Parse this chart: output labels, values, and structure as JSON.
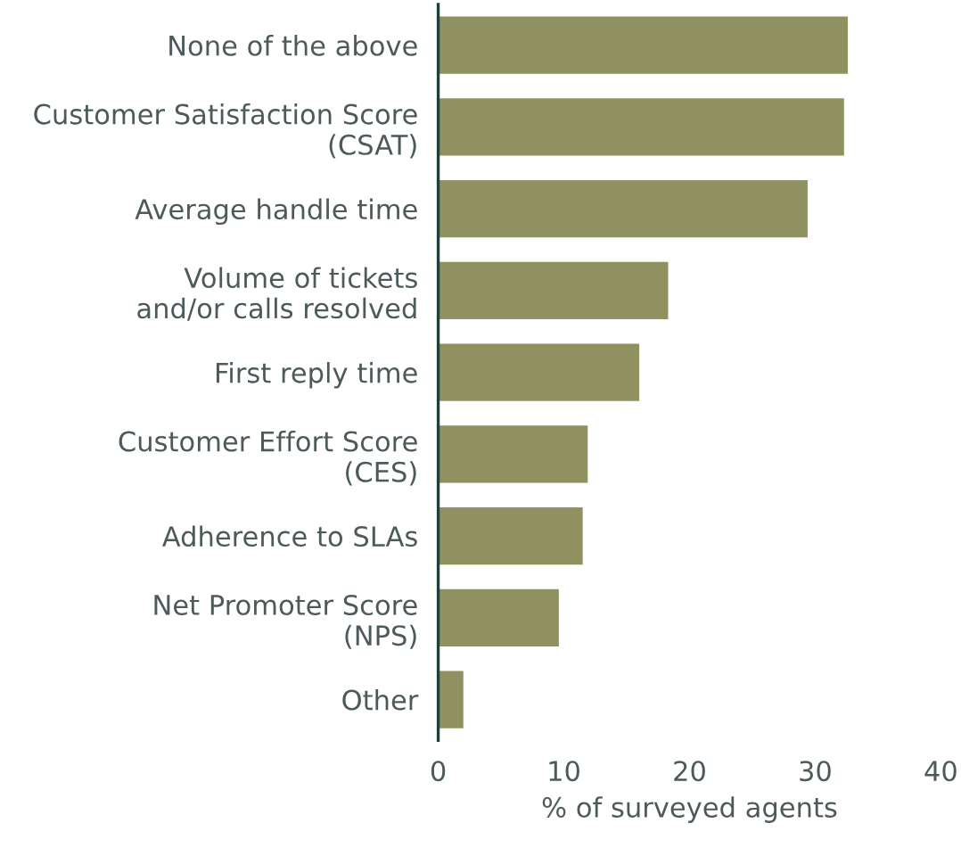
{
  "chart_data": {
    "type": "bar",
    "orientation": "horizontal",
    "categories": [
      "None of the above",
      "Customer Satisfaction Score\n(CSAT)",
      "Average handle time",
      "Volume of tickets\nand/or calls resolved",
      "First reply time",
      "Customer Effort Score\n(CES)",
      "Adherence to SLAs",
      "Net Promoter Score\n(NPS)",
      "Other"
    ],
    "values": [
      32.6,
      32.3,
      29.4,
      18.3,
      16.0,
      11.9,
      11.5,
      9.6,
      2.0
    ],
    "color": "#8f9160",
    "xlabel": "% of surveyed agents",
    "xlim": [
      0,
      40
    ],
    "xticks": [
      0,
      10,
      20,
      30,
      40
    ],
    "grid": false,
    "legend": false
  }
}
